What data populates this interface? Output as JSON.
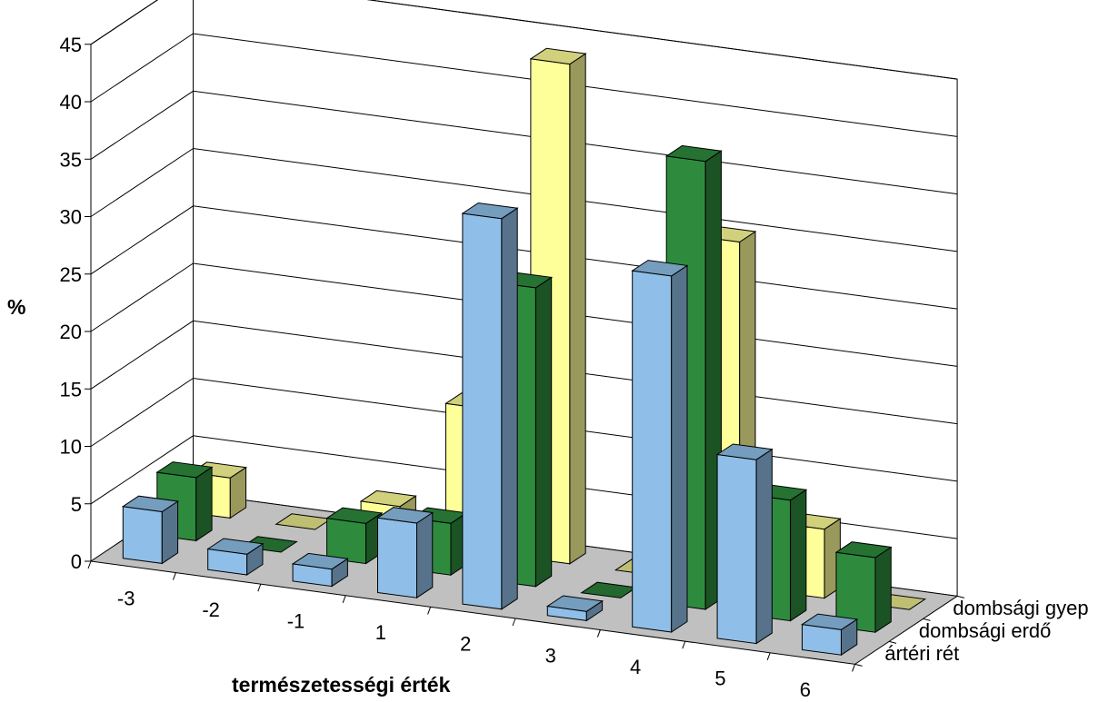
{
  "chart_data": {
    "type": "bar",
    "subtype": "3d-column",
    "xlabel": "természetességi érték",
    "ylabel": "%",
    "ylim": [
      0,
      45
    ],
    "yticks": [
      0,
      5,
      10,
      15,
      20,
      25,
      30,
      35,
      40,
      45
    ],
    "categories": [
      "-3",
      "-2",
      "-1",
      "1",
      "2",
      "3",
      "4",
      "5",
      "6"
    ],
    "grid": true,
    "floor_color": "#c0c0c0",
    "series": [
      {
        "name": "ártéri rét",
        "color": "#8fbfe8",
        "values": [
          4.5,
          1.8,
          1.5,
          6.5,
          34,
          0.8,
          31,
          16,
          2.2
        ]
      },
      {
        "name": "dombsági erdő",
        "color": "#2e8b3e",
        "values": [
          5.5,
          0,
          3.5,
          4.5,
          26,
          0,
          39,
          10.5,
          6.5
        ]
      },
      {
        "name": "dombsági gyep",
        "color": "#ffff99",
        "values": [
          3.5,
          0,
          3,
          12.5,
          43.5,
          0,
          30,
          6,
          0
        ]
      }
    ]
  }
}
